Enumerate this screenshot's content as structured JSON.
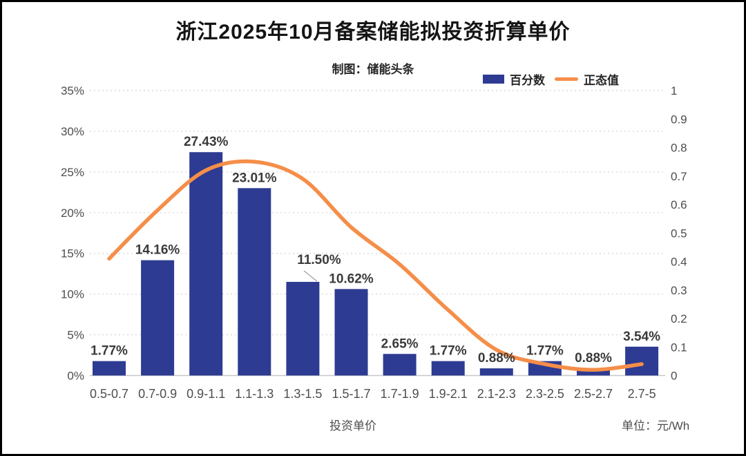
{
  "header": {
    "title": "浙江2025年10月备案储能拟投资折算单价",
    "subtitle": "制图：储能头条"
  },
  "legend": {
    "items": [
      {
        "label": "百分数",
        "marker": "bar-swatch",
        "color": "#2e3b92"
      },
      {
        "label": "正态值",
        "marker": "line-swatch",
        "color": "#f58e49"
      }
    ]
  },
  "chart_data": {
    "type": "bar+line",
    "title": "浙江2025年10月备案储能拟投资折算单价",
    "subtitle": "制图：储能头条",
    "categories": [
      "0.5-0.7",
      "0.7-0.9",
      "0.9-1.1",
      "1.1-1.3",
      "1.3-1.5",
      "1.5-1.7",
      "1.7-1.9",
      "1.9-2.1",
      "2.1-2.3",
      "2.3-2.5",
      "2.5-2.7",
      "2.7-5"
    ],
    "series": [
      {
        "name": "百分数",
        "type": "bar",
        "axis": "left",
        "color": "#2e3b92",
        "values": [
          1.77,
          14.16,
          27.43,
          23.01,
          11.5,
          10.62,
          2.65,
          1.77,
          0.88,
          1.77,
          0.88,
          3.54
        ],
        "labels": [
          "1.77%",
          "14.16%",
          "27.43%",
          "23.01%",
          "11.50%",
          "10.62%",
          "2.65%",
          "1.77%",
          "0.88%",
          "1.77%",
          "0.88%",
          "3.54%"
        ]
      },
      {
        "name": "正态值",
        "type": "line",
        "axis": "right",
        "color": "#f58e49",
        "values": [
          0.41,
          0.58,
          0.72,
          0.75,
          0.69,
          0.52,
          0.39,
          0.23,
          0.09,
          0.04,
          0.02,
          0.04
        ]
      }
    ],
    "left_axis": {
      "min": 0,
      "max": 35,
      "step": 5,
      "ticks": [
        "35%",
        "30%",
        "25%",
        "20%",
        "15%",
        "10%",
        "5%",
        "0%"
      ]
    },
    "right_axis": {
      "min": 0,
      "max": 1,
      "step": 0.1,
      "ticks": [
        "1",
        "0.9",
        "0.8",
        "0.7",
        "0.6",
        "0.5",
        "0.4",
        "0.3",
        "0.2",
        "0.1",
        "0"
      ]
    },
    "xlabel": "投资单价",
    "unit_note": "单位：元/Wh",
    "grid": "horizontal-dotted",
    "legend_position": "top-right",
    "colors": {
      "bar": "#2e3b92",
      "line": "#f58e49",
      "grid": "#d9d9d9",
      "axis_line": "#c8c8c8",
      "axis_text": "#4d4d4d",
      "data_label_text": "#3a3a3a",
      "leader_line": "#9e9e9e"
    }
  }
}
